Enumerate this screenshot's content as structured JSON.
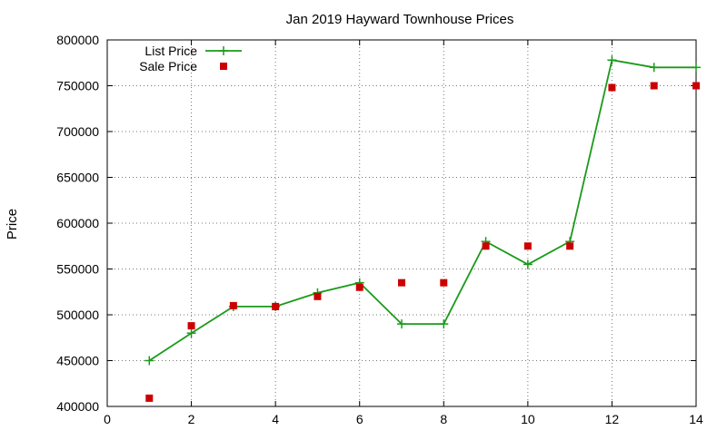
{
  "chart_data": {
    "type": "line",
    "title": "Jan 2019 Hayward Townhouse Prices",
    "xlabel": "",
    "ylabel": "Price",
    "xlim": [
      0,
      14
    ],
    "ylim": [
      400000,
      800000
    ],
    "x_ticks": [
      0,
      2,
      4,
      6,
      8,
      10,
      12,
      14
    ],
    "y_ticks": [
      400000,
      450000,
      500000,
      550000,
      600000,
      650000,
      700000,
      750000,
      800000
    ],
    "grid": true,
    "legend": "top-left",
    "series": [
      {
        "name": "List Price",
        "style": "line+cross",
        "color": "#1a9a1a",
        "x": [
          1,
          2,
          3,
          4,
          5,
          6,
          7,
          8,
          9,
          10,
          11,
          12,
          13,
          14
        ],
        "y": [
          450000,
          480000,
          509000,
          509000,
          524000,
          535000,
          490000,
          490000,
          580000,
          555000,
          580000,
          778000,
          770000,
          770000
        ]
      },
      {
        "name": "Sale Price",
        "style": "square",
        "color": "#cc0000",
        "x": [
          1,
          2,
          3,
          4,
          5,
          6,
          7,
          8,
          9,
          10,
          11,
          12,
          13,
          14
        ],
        "y": [
          409000,
          488000,
          510000,
          509000,
          520000,
          530000,
          535000,
          535000,
          575000,
          575000,
          575000,
          748000,
          750000,
          750000
        ]
      }
    ]
  }
}
